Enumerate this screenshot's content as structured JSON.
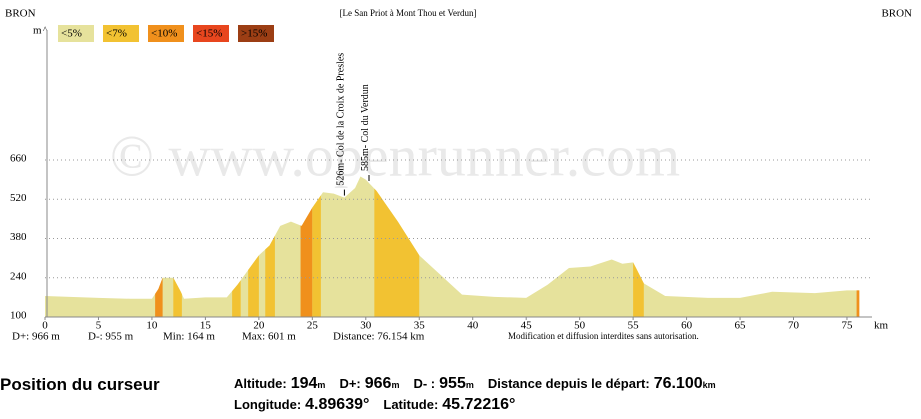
{
  "chart_data": {
    "type": "elevation-profile",
    "title": "[Le San Priot à Mont Thou et Verdun]",
    "start_label": "BRON",
    "end_label": "BRON",
    "y_unit": "m",
    "y_arrow": "^",
    "x_unit": "km",
    "watermark": "© www.openrunner.com",
    "legend": [
      {
        "label": "<5%",
        "color": "#e6e29c"
      },
      {
        "label": "<7%",
        "color": "#f2c232"
      },
      {
        "label": "<10%",
        "color": "#f0901c"
      },
      {
        "label": "<15%",
        "color": "#e8461e"
      },
      {
        "label": ">15%",
        "color": "#9c3e14"
      }
    ],
    "x": [
      0,
      5,
      8,
      10,
      10.6,
      11,
      12,
      12.7,
      13,
      15,
      17,
      18,
      20,
      21,
      22,
      23,
      24,
      25,
      26,
      27,
      28,
      29,
      29.5,
      30,
      31,
      33,
      35,
      37,
      39,
      42,
      45,
      47,
      49,
      51,
      53,
      54,
      55,
      56,
      58,
      62,
      65,
      68,
      72,
      75,
      76.154
    ],
    "values": [
      175,
      168,
      165,
      165,
      200,
      240,
      240,
      190,
      165,
      170,
      170,
      215,
      320,
      355,
      425,
      440,
      425,
      490,
      545,
      540,
      526,
      560,
      601,
      590,
      550,
      440,
      320,
      250,
      180,
      172,
      168,
      215,
      275,
      280,
      305,
      290,
      295,
      220,
      175,
      168,
      168,
      190,
      185,
      195,
      195
    ],
    "bands": [
      {
        "from": 10.3,
        "to": 11,
        "color": "#f0901c"
      },
      {
        "from": 12,
        "to": 12.8,
        "color": "#f2c232"
      },
      {
        "from": 17.5,
        "to": 18.3,
        "color": "#f2c232"
      },
      {
        "from": 19,
        "to": 20,
        "color": "#f2c232"
      },
      {
        "from": 20.6,
        "to": 21.5,
        "color": "#f2c232"
      },
      {
        "from": 23.9,
        "to": 25,
        "color": "#f0901c"
      },
      {
        "from": 25,
        "to": 25.8,
        "color": "#f2c232"
      },
      {
        "from": 30.8,
        "to": 35,
        "color": "#f2c232"
      },
      {
        "from": 55,
        "to": 56,
        "color": "#f2c232"
      },
      {
        "from": 75.9,
        "to": 76.154,
        "color": "#f0901c"
      }
    ],
    "annotations": [
      {
        "text": "526m- Col de la Croix de Presles",
        "x": 28
      },
      {
        "text": "585m- Col du Verdun",
        "x": 30.3
      }
    ],
    "xlim": [
      0,
      76.154
    ],
    "xticks": [
      0,
      5,
      10,
      15,
      20,
      25,
      30,
      35,
      40,
      45,
      50,
      55,
      60,
      65,
      70,
      75
    ],
    "ylim": [
      100,
      660
    ],
    "yticks": [
      100,
      240,
      380,
      520,
      660
    ],
    "grid": true,
    "stats": [
      "D+: 966 m",
      "D-: 955 m",
      "Min: 164 m",
      "Max: 601 m",
      "Distance: 76.154 km"
    ],
    "notice": "Modification et diffusion interdites sans autorisation."
  },
  "cursor": {
    "title": "Position du curseur",
    "rows": [
      [
        {
          "label": "Altitude:",
          "value": "194",
          "unit": "m"
        },
        {
          "label": "D+:",
          "value": "966",
          "unit": "m"
        },
        {
          "label": "D- :",
          "value": "955",
          "unit": "m"
        },
        {
          "label": "Distance depuis le départ:",
          "value": "76.100",
          "unit": "km"
        }
      ],
      [
        {
          "label": "Longitude:",
          "value": "4.89639°",
          "unit": ""
        },
        {
          "label": "Latitude:",
          "value": "45.72216°",
          "unit": ""
        }
      ]
    ]
  }
}
